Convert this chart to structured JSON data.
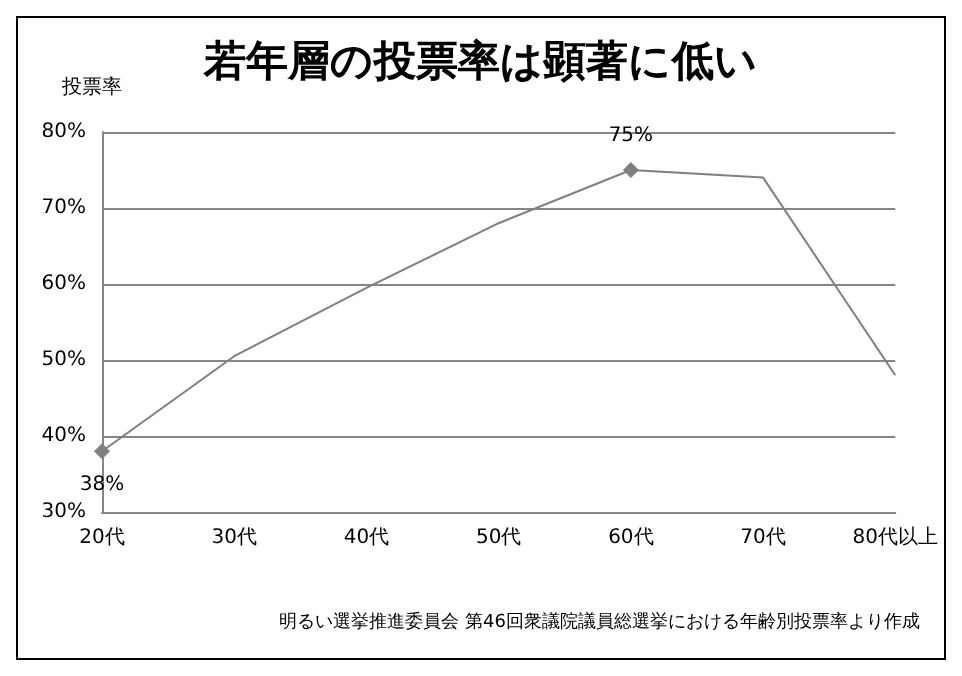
{
  "chart_data": {
    "type": "line",
    "title": "若年層の投票率は顕著に低い",
    "ylabel": "投票率",
    "categories": [
      "20代",
      "30代",
      "40代",
      "50代",
      "60代",
      "70代",
      "80代以上"
    ],
    "series": [
      {
        "color": "#7f7f7f",
        "values": [
          38,
          50.5,
          59.5,
          68,
          75,
          74,
          48
        ],
        "value_labels": [
          "38%",
          null,
          null,
          null,
          "75%",
          null,
          null
        ]
      }
    ],
    "ylim": [
      30,
      80
    ],
    "yticks": [
      {
        "value": 30,
        "label": "30%"
      },
      {
        "value": 40,
        "label": "40%"
      },
      {
        "value": 50,
        "label": "50%"
      },
      {
        "value": 60,
        "label": "60%"
      },
      {
        "value": 70,
        "label": "70%"
      },
      {
        "value": 80,
        "label": "80%"
      }
    ],
    "grid": "y",
    "line_style": "solid",
    "annotations": [
      "明るい選挙推進委員会 第46回衆議院議員総選挙における年齢別投票率より作成"
    ]
  }
}
